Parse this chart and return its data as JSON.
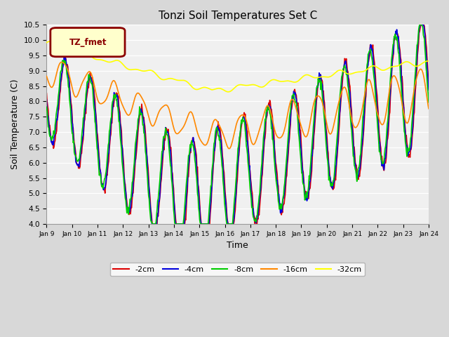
{
  "title": "Tonzi Soil Temperatures Set C",
  "xlabel": "Time",
  "ylabel": "Soil Temperature (C)",
  "ylim": [
    4.0,
    10.5
  ],
  "yticks": [
    4.0,
    4.5,
    5.0,
    5.5,
    6.0,
    6.5,
    7.0,
    7.5,
    8.0,
    8.5,
    9.0,
    9.5,
    10.0,
    10.5
  ],
  "xtick_labels": [
    "Jan 9",
    "Jan 10",
    "Jan 11",
    "Jan 12",
    "Jan 13",
    "Jan 14",
    "Jan 15",
    "Jan 16",
    "Jan 17",
    "Jan 18",
    "Jan 19",
    "Jan 20",
    "Jan 21",
    "Jan 22",
    "Jan 23",
    "Jan 24"
  ],
  "legend_label": "TZ_fmet",
  "line_colors": {
    "-2cm": "#dd0000",
    "-4cm": "#0000dd",
    "-8cm": "#00cc00",
    "-16cm": "#ff8800",
    "-32cm": "#ffff00"
  },
  "line_width": 1.2,
  "bg_color": "#f0f0f0",
  "fig_bg": "#d8d8d8",
  "grid_color": "#ffffff",
  "legend_face": "#ffffcc",
  "legend_edge": "#8b0000"
}
